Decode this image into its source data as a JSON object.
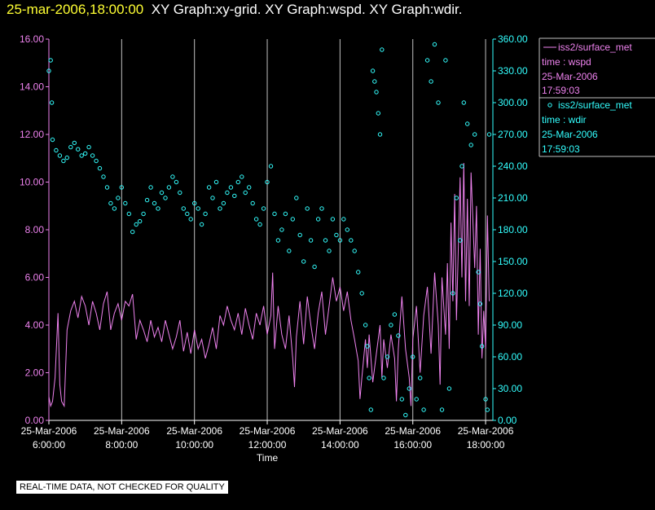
{
  "header": {
    "timestamp": "25-mar-2006,18:00:00",
    "graphs": "XY Graph:xy-grid.  XY Graph:wspd.  XY Graph:wdir."
  },
  "footer": {
    "note": "REAL-TIME DATA, NOT CHECKED FOR QUALITY"
  },
  "colors": {
    "wspd": "#ee82ee",
    "wdir": "#33ffff",
    "grid": "#c0c0c0",
    "axis": "#ffffff",
    "timestamp": "#ffff33"
  },
  "chart_data": {
    "type": "line",
    "xlabel": "Time",
    "x_ticks": [
      "25-Mar-2006 6:00:00",
      "25-Mar-2006 8:00:00",
      "25-Mar-2006 10:00:00",
      "25-Mar-2006 12:00:00",
      "25-Mar-2006 14:00:00",
      "25-Mar-2006 16:00:00",
      "25-Mar-2006 18:00:00"
    ],
    "x_range_hours": [
      6.0,
      18.2
    ],
    "y_left": {
      "ticks": [
        "0.00",
        "2.00",
        "4.00",
        "6.00",
        "8.00",
        "10.00",
        "12.00",
        "14.00",
        "16.00"
      ],
      "range": [
        0,
        16
      ]
    },
    "y_right": {
      "ticks": [
        "0.00",
        "30.00",
        "60.00",
        "90.00",
        "120.00",
        "150.00",
        "180.00",
        "210.00",
        "240.00",
        "270.00",
        "300.00",
        "330.00",
        "360.00"
      ],
      "range": [
        0,
        360
      ]
    },
    "grid": "vertical lines at each x tick",
    "legend": [
      {
        "line1": "iss2/surface_met",
        "line2": "time : wspd",
        "line3": "25-Mar-2006",
        "line4": "17:59:03"
      },
      {
        "line1": "iss2/surface_met",
        "line2": "time : wdir",
        "line3": "25-Mar-2006",
        "line4": "17:59:03"
      }
    ],
    "series": [
      {
        "key": "wspd",
        "style": "line",
        "axis": "left",
        "points": [
          [
            6.0,
            1.0
          ],
          [
            6.05,
            0.6
          ],
          [
            6.1,
            0.8
          ],
          [
            6.17,
            1.8
          ],
          [
            6.25,
            4.5
          ],
          [
            6.3,
            1.5
          ],
          [
            6.35,
            0.8
          ],
          [
            6.42,
            0.6
          ],
          [
            6.5,
            3.8
          ],
          [
            6.6,
            4.6
          ],
          [
            6.7,
            5.0
          ],
          [
            6.8,
            4.3
          ],
          [
            6.9,
            5.2
          ],
          [
            7.0,
            4.8
          ],
          [
            7.1,
            4.0
          ],
          [
            7.2,
            5.0
          ],
          [
            7.3,
            4.5
          ],
          [
            7.4,
            3.8
          ],
          [
            7.5,
            4.9
          ],
          [
            7.6,
            5.4
          ],
          [
            7.7,
            3.8
          ],
          [
            7.8,
            4.5
          ],
          [
            7.9,
            4.9
          ],
          [
            8.0,
            4.2
          ],
          [
            8.1,
            5.0
          ],
          [
            8.2,
            4.8
          ],
          [
            8.3,
            5.3
          ],
          [
            8.4,
            3.4
          ],
          [
            8.5,
            4.2
          ],
          [
            8.6,
            3.8
          ],
          [
            8.7,
            3.3
          ],
          [
            8.8,
            4.2
          ],
          [
            8.9,
            3.5
          ],
          [
            9.0,
            3.9
          ],
          [
            9.1,
            3.3
          ],
          [
            9.2,
            4.2
          ],
          [
            9.3,
            3.6
          ],
          [
            9.4,
            3.0
          ],
          [
            9.5,
            3.5
          ],
          [
            9.6,
            4.2
          ],
          [
            9.7,
            2.9
          ],
          [
            9.8,
            3.7
          ],
          [
            9.9,
            2.8
          ],
          [
            10.0,
            3.8
          ],
          [
            10.1,
            3.0
          ],
          [
            10.2,
            3.4
          ],
          [
            10.3,
            2.6
          ],
          [
            10.4,
            3.2
          ],
          [
            10.5,
            3.9
          ],
          [
            10.6,
            3.0
          ],
          [
            10.7,
            4.4
          ],
          [
            10.8,
            4.0
          ],
          [
            10.9,
            4.8
          ],
          [
            11.0,
            4.2
          ],
          [
            11.1,
            3.8
          ],
          [
            11.2,
            4.5
          ],
          [
            11.3,
            3.6
          ],
          [
            11.4,
            4.7
          ],
          [
            11.5,
            4.0
          ],
          [
            11.6,
            3.4
          ],
          [
            11.7,
            4.5
          ],
          [
            11.8,
            4.0
          ],
          [
            11.9,
            4.8
          ],
          [
            12.0,
            3.6
          ],
          [
            12.1,
            4.4
          ],
          [
            12.15,
            6.2
          ],
          [
            12.2,
            3.0
          ],
          [
            12.3,
            4.8
          ],
          [
            12.4,
            3.6
          ],
          [
            12.5,
            3.0
          ],
          [
            12.6,
            4.4
          ],
          [
            12.7,
            2.6
          ],
          [
            12.75,
            1.4
          ],
          [
            12.8,
            3.5
          ],
          [
            12.9,
            5.0
          ],
          [
            13.0,
            3.2
          ],
          [
            13.1,
            5.2
          ],
          [
            13.2,
            4.0
          ],
          [
            13.3,
            3.0
          ],
          [
            13.4,
            4.5
          ],
          [
            13.5,
            5.4
          ],
          [
            13.6,
            3.6
          ],
          [
            13.7,
            4.8
          ],
          [
            13.8,
            6.0
          ],
          [
            13.9,
            5.0
          ],
          [
            14.0,
            5.6
          ],
          [
            14.1,
            4.6
          ],
          [
            14.2,
            5.4
          ],
          [
            14.3,
            4.2
          ],
          [
            14.4,
            3.4
          ],
          [
            14.5,
            2.5
          ],
          [
            14.55,
            0.9
          ],
          [
            14.6,
            1.8
          ],
          [
            14.7,
            3.4
          ],
          [
            14.75,
            2.2
          ],
          [
            14.8,
            3.6
          ],
          [
            14.9,
            1.6
          ],
          [
            15.0,
            2.8
          ],
          [
            15.1,
            4.0
          ],
          [
            15.15,
            1.8
          ],
          [
            15.2,
            3.4
          ],
          [
            15.3,
            2.2
          ],
          [
            15.4,
            3.6
          ],
          [
            15.5,
            2.6
          ],
          [
            15.55,
            0.8
          ],
          [
            15.6,
            3.0
          ],
          [
            15.7,
            5.2
          ],
          [
            15.8,
            3.0
          ],
          [
            15.9,
            1.8
          ],
          [
            15.95,
            0.6
          ],
          [
            16.0,
            3.4
          ],
          [
            16.1,
            4.8
          ],
          [
            16.2,
            2.0
          ],
          [
            16.3,
            4.4
          ],
          [
            16.4,
            5.6
          ],
          [
            16.5,
            2.8
          ],
          [
            16.6,
            6.2
          ],
          [
            16.7,
            4.0
          ],
          [
            16.75,
            1.5
          ],
          [
            16.8,
            6.0
          ],
          [
            16.9,
            3.6
          ],
          [
            16.95,
            6.6
          ],
          [
            17.0,
            3.0
          ],
          [
            17.05,
            8.3
          ],
          [
            17.1,
            5.0
          ],
          [
            17.15,
            9.5
          ],
          [
            17.2,
            4.2
          ],
          [
            17.3,
            10.2
          ],
          [
            17.35,
            6.0
          ],
          [
            17.4,
            10.8
          ],
          [
            17.45,
            5.0
          ],
          [
            17.5,
            9.3
          ],
          [
            17.55,
            4.8
          ],
          [
            17.6,
            10.4
          ],
          [
            17.7,
            6.4
          ],
          [
            17.75,
            9.0
          ],
          [
            17.8,
            3.6
          ],
          [
            17.85,
            7.2
          ],
          [
            17.9,
            2.6
          ],
          [
            17.95,
            4.6
          ],
          [
            18.0,
            3.0
          ],
          [
            18.05,
            8.6
          ],
          [
            18.1,
            5.0
          ]
        ]
      },
      {
        "key": "wdir",
        "style": "scatter",
        "axis": "right",
        "points": [
          [
            6.0,
            330
          ],
          [
            6.05,
            340
          ],
          [
            6.08,
            300
          ],
          [
            6.1,
            265
          ],
          [
            6.2,
            255
          ],
          [
            6.3,
            250
          ],
          [
            6.4,
            245
          ],
          [
            6.5,
            248
          ],
          [
            6.6,
            258
          ],
          [
            6.7,
            262
          ],
          [
            6.8,
            256
          ],
          [
            6.9,
            250
          ],
          [
            7.0,
            252
          ],
          [
            7.1,
            258
          ],
          [
            7.2,
            250
          ],
          [
            7.3,
            245
          ],
          [
            7.4,
            238
          ],
          [
            7.5,
            230
          ],
          [
            7.6,
            220
          ],
          [
            7.7,
            205
          ],
          [
            7.8,
            200
          ],
          [
            7.9,
            210
          ],
          [
            8.0,
            220
          ],
          [
            8.1,
            205
          ],
          [
            8.2,
            195
          ],
          [
            8.3,
            178
          ],
          [
            8.4,
            185
          ],
          [
            8.5,
            188
          ],
          [
            8.6,
            195
          ],
          [
            8.7,
            208
          ],
          [
            8.8,
            220
          ],
          [
            8.9,
            205
          ],
          [
            9.0,
            200
          ],
          [
            9.1,
            215
          ],
          [
            9.2,
            210
          ],
          [
            9.3,
            220
          ],
          [
            9.4,
            230
          ],
          [
            9.5,
            225
          ],
          [
            9.6,
            215
          ],
          [
            9.7,
            200
          ],
          [
            9.8,
            195
          ],
          [
            9.9,
            190
          ],
          [
            10.0,
            205
          ],
          [
            10.1,
            200
          ],
          [
            10.2,
            185
          ],
          [
            10.3,
            195
          ],
          [
            10.4,
            220
          ],
          [
            10.5,
            210
          ],
          [
            10.6,
            225
          ],
          [
            10.7,
            200
          ],
          [
            10.8,
            205
          ],
          [
            10.9,
            215
          ],
          [
            11.0,
            220
          ],
          [
            11.1,
            212
          ],
          [
            11.2,
            225
          ],
          [
            11.3,
            230
          ],
          [
            11.4,
            215
          ],
          [
            11.5,
            220
          ],
          [
            11.6,
            205
          ],
          [
            11.7,
            190
          ],
          [
            11.8,
            185
          ],
          [
            11.9,
            200
          ],
          [
            12.0,
            225
          ],
          [
            12.1,
            240
          ],
          [
            12.2,
            195
          ],
          [
            12.3,
            170
          ],
          [
            12.4,
            180
          ],
          [
            12.5,
            195
          ],
          [
            12.6,
            160
          ],
          [
            12.7,
            190
          ],
          [
            12.8,
            210
          ],
          [
            12.9,
            175
          ],
          [
            13.0,
            150
          ],
          [
            13.1,
            200
          ],
          [
            13.2,
            170
          ],
          [
            13.3,
            145
          ],
          [
            13.4,
            190
          ],
          [
            13.5,
            200
          ],
          [
            13.6,
            170
          ],
          [
            13.7,
            160
          ],
          [
            13.8,
            190
          ],
          [
            13.9,
            175
          ],
          [
            14.0,
            170
          ],
          [
            14.1,
            190
          ],
          [
            14.2,
            180
          ],
          [
            14.3,
            170
          ],
          [
            14.4,
            160
          ],
          [
            14.5,
            140
          ],
          [
            14.6,
            120
          ],
          [
            14.7,
            90
          ],
          [
            14.75,
            70
          ],
          [
            14.8,
            40
          ],
          [
            14.85,
            10
          ],
          [
            14.9,
            330
          ],
          [
            14.95,
            320
          ],
          [
            15.0,
            310
          ],
          [
            15.05,
            290
          ],
          [
            15.1,
            270
          ],
          [
            15.15,
            350
          ],
          [
            15.2,
            40
          ],
          [
            15.3,
            60
          ],
          [
            15.4,
            90
          ],
          [
            15.5,
            100
          ],
          [
            15.6,
            80
          ],
          [
            15.7,
            20
          ],
          [
            15.8,
            5
          ],
          [
            15.9,
            30
          ],
          [
            16.0,
            60
          ],
          [
            16.1,
            20
          ],
          [
            16.2,
            40
          ],
          [
            16.3,
            10
          ],
          [
            16.4,
            340
          ],
          [
            16.5,
            320
          ],
          [
            16.6,
            355
          ],
          [
            16.7,
            300
          ],
          [
            16.8,
            10
          ],
          [
            16.9,
            340
          ],
          [
            17.0,
            30
          ],
          [
            17.1,
            120
          ],
          [
            17.2,
            210
          ],
          [
            17.3,
            170
          ],
          [
            17.35,
            240
          ],
          [
            17.4,
            300
          ],
          [
            17.5,
            280
          ],
          [
            17.6,
            260
          ],
          [
            17.7,
            270
          ],
          [
            17.8,
            140
          ],
          [
            17.85,
            110
          ],
          [
            17.9,
            70
          ],
          [
            18.0,
            20
          ],
          [
            18.05,
            10
          ],
          [
            18.1,
            270
          ]
        ]
      }
    ]
  }
}
